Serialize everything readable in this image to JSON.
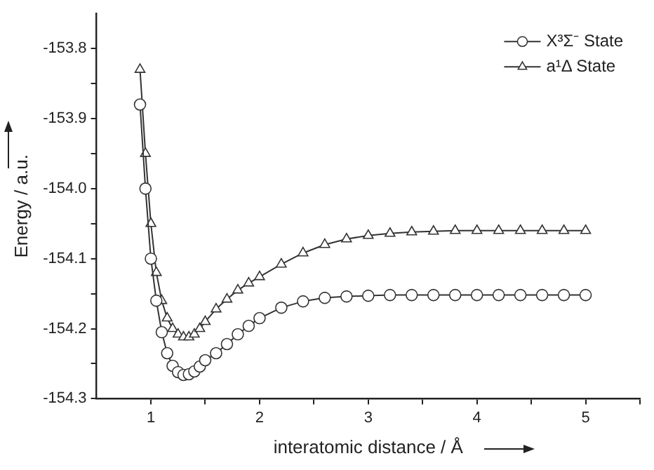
{
  "chart_data": {
    "type": "line",
    "xlabel": "interatomic distance / Å",
    "ylabel": "Energy / a.u.",
    "xlim": [
      0.5,
      5.5
    ],
    "xticks": [
      1,
      {
        "value": 1.5,
        "label": null
      },
      2,
      {
        "value": 2.5,
        "label": null
      },
      3,
      {
        "value": 3.5,
        "label": null
      },
      4,
      {
        "value": 4.5,
        "label": null
      },
      5,
      {
        "value": 5.5,
        "label": null
      }
    ],
    "ylim": [
      -154.3,
      -153.75
    ],
    "yticks": [
      -154.3,
      {
        "value": -154.25,
        "label": null
      },
      -154.2,
      {
        "value": -154.15,
        "label": null
      },
      -154.1,
      {
        "value": -154.05,
        "label": null
      },
      {
        "value": -154.0,
        "label": "-154.0"
      },
      {
        "value": -153.95,
        "label": null
      },
      -153.9,
      {
        "value": -153.85,
        "label": null
      },
      -153.8
    ],
    "grid": false,
    "legend": "top right",
    "line_style": "solid",
    "series": [
      {
        "name": "X³Σ⁻ State",
        "color": "#333333",
        "marker": "circle",
        "x": [
          0.9,
          0.95,
          1.0,
          1.05,
          1.1,
          1.15,
          1.2,
          1.25,
          1.3,
          1.35,
          1.4,
          1.45,
          1.5,
          1.6,
          1.7,
          1.8,
          1.9,
          2.0,
          2.2,
          2.4,
          2.6,
          2.8,
          3.0,
          3.2,
          3.4,
          3.6,
          3.8,
          4.0,
          4.2,
          4.4,
          4.6,
          4.8,
          5.0
        ],
        "values": [
          -153.88,
          -154.0,
          -154.1,
          -154.16,
          -154.205,
          -154.235,
          -154.253,
          -154.262,
          -154.266,
          -154.265,
          -154.261,
          -154.254,
          -154.245,
          -154.235,
          -154.222,
          -154.208,
          -154.196,
          -154.185,
          -154.17,
          -154.161,
          -154.156,
          -154.154,
          -154.153,
          -154.152,
          -154.152,
          -154.152,
          -154.152,
          -154.152,
          -154.152,
          -154.152,
          -154.152,
          -154.152,
          -154.152
        ]
      },
      {
        "name": "a¹Δ State",
        "color": "#333333",
        "marker": "triangle",
        "x": [
          0.9,
          0.95,
          1.0,
          1.05,
          1.1,
          1.15,
          1.2,
          1.25,
          1.3,
          1.35,
          1.4,
          1.45,
          1.5,
          1.6,
          1.7,
          1.8,
          1.9,
          2.0,
          2.2,
          2.4,
          2.6,
          2.8,
          3.0,
          3.2,
          3.4,
          3.6,
          3.8,
          4.0,
          4.2,
          4.4,
          4.6,
          4.8,
          5.0
        ],
        "values": [
          -153.83,
          -153.95,
          -154.05,
          -154.12,
          -154.16,
          -154.185,
          -154.2,
          -154.208,
          -154.212,
          -154.212,
          -154.208,
          -154.2,
          -154.19,
          -154.172,
          -154.158,
          -154.145,
          -154.135,
          -154.126,
          -154.108,
          -154.092,
          -154.08,
          -154.072,
          -154.067,
          -154.064,
          -154.062,
          -154.061,
          -154.06,
          -154.06,
          -154.06,
          -154.06,
          -154.06,
          -154.06,
          -154.06
        ]
      }
    ]
  }
}
